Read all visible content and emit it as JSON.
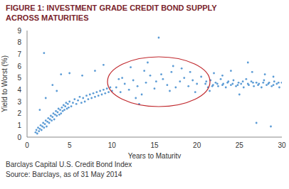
{
  "chart_data": {
    "type": "scatter",
    "title": "FIGURE 1: INVESTMENT GRADE CREDIT BOND SUPPLY ACROSS MATURITIES",
    "x_label": "Years to Maturity",
    "y_label": "Yield to Worst (%)",
    "footnotes": [
      "Barclays Capital U.S. Credit Bond Index",
      "Source: Barclays, as of 31 May 2014"
    ],
    "color": "#5b9bd5",
    "marker": "circle",
    "grid": false,
    "xlim": [
      0,
      30
    ],
    "xticks": [
      0,
      5,
      10,
      15,
      20,
      25,
      30
    ],
    "ylim": [
      0,
      9
    ],
    "yticks": [
      0,
      1,
      2,
      3,
      4,
      5,
      6,
      7,
      8,
      9
    ],
    "x": [
      1.0,
      1.1,
      1.2,
      1.3,
      1.4,
      1.5,
      1.6,
      1.7,
      1.8,
      1.9,
      2.0,
      2.1,
      2.2,
      2.3,
      2.4,
      2.5,
      2.6,
      2.7,
      2.8,
      2.9,
      3.0,
      3.1,
      3.2,
      3.3,
      3.4,
      3.5,
      3.6,
      3.7,
      3.8,
      3.9,
      4.0,
      4.1,
      4.2,
      4.3,
      4.4,
      4.5,
      4.6,
      4.7,
      4.8,
      4.9,
      5.0,
      5.2,
      5.4,
      5.6,
      5.8,
      6.0,
      6.2,
      6.4,
      6.6,
      6.8,
      7.0,
      7.2,
      7.4,
      7.6,
      7.8,
      8.0,
      8.2,
      8.4,
      8.6,
      8.8,
      9.0,
      9.2,
      9.4,
      9.6,
      9.8,
      10.0,
      1.5,
      2.0,
      2.2,
      3.0,
      4.0,
      5.0,
      6.5,
      8.0,
      9.0,
      3.5,
      10.5,
      11,
      11.5,
      12,
      12.5,
      13,
      13.5,
      14,
      14.5,
      15,
      15.5,
      16,
      16.5,
      17,
      17.5,
      18,
      18.5,
      19,
      19.5,
      20,
      20.5,
      11.2,
      12.8,
      13.8,
      15.2,
      16.8,
      18.2,
      19.8,
      14.2,
      17.2,
      12.2,
      10.8,
      15.8,
      13.2,
      19.2,
      21,
      21.3,
      21.6,
      21.9,
      22.2,
      22.5,
      22.8,
      23.1,
      23.4,
      23.7,
      24,
      24.3,
      24.6,
      24.9,
      25.2,
      25.5,
      25.8,
      26.1,
      26.4,
      26.7,
      27,
      27.3,
      27.6,
      27.9,
      28.2,
      28.5,
      28.8,
      29.1,
      29.4,
      29.7,
      30,
      21.1,
      21.8,
      22.4,
      23,
      23.6,
      24.2,
      24.8,
      25.4,
      26,
      26.6,
      27.2,
      27.8,
      28.4,
      29,
      29.6,
      22,
      24,
      26,
      28,
      25,
      27,
      23,
      29,
      21.5,
      26.5,
      28.7
    ],
    "values": [
      0.4,
      0.6,
      0.3,
      0.8,
      0.5,
      0.7,
      1.0,
      0.6,
      0.9,
      1.2,
      0.8,
      1.1,
      1.4,
      0.9,
      1.3,
      1.6,
      1.2,
      1.5,
      1.8,
      1.4,
      1.7,
      2.0,
      1.5,
      1.9,
      2.2,
      1.8,
      2.1,
      2.4,
      1.9,
      2.3,
      2.0,
      2.5,
      2.2,
      2.7,
      2.3,
      2.6,
      2.9,
      2.4,
      2.8,
      2.5,
      3.0,
      2.6,
      2.9,
      3.2,
      2.8,
      3.1,
      3.4,
      2.9,
      3.3,
      3.0,
      3.5,
      3.2,
      3.6,
      3.3,
      3.7,
      3.4,
      3.8,
      3.5,
      3.9,
      3.6,
      4.0,
      3.7,
      4.1,
      3.8,
      4.2,
      3.9,
      2.3,
      7.1,
      3.3,
      4.4,
      5.3,
      5.4,
      5.2,
      5.6,
      6.1,
      3.9,
      4.2,
      3.8,
      4.5,
      4.0,
      4.8,
      4.3,
      3.6,
      4.6,
      5.2,
      4.1,
      8.4,
      4.9,
      4.4,
      5.5,
      4.2,
      4.7,
      5.0,
      4.3,
      4.8,
      4.5,
      5.1,
      5.0,
      3.3,
      5.6,
      4.7,
      3.9,
      5.8,
      3.8,
      6.3,
      6.0,
      5.9,
      4.9,
      5.3,
      2.8,
      5.5,
      4.5,
      4.2,
      4.8,
      4.4,
      4.6,
      4.3,
      4.9,
      4.5,
      4.2,
      4.7,
      4.4,
      4.8,
      4.3,
      4.6,
      4.5,
      4.2,
      4.9,
      4.4,
      4.7,
      4.3,
      4.6,
      4.5,
      4.2,
      4.8,
      4.4,
      4.6,
      4.3,
      4.7,
      4.5,
      4.2,
      4.6,
      4.7,
      4.3,
      4.5,
      4.4,
      4.6,
      4.5,
      4.4,
      4.7,
      4.5,
      4.6,
      4.4,
      4.6,
      4.5,
      4.4,
      4.6,
      5.4,
      5.6,
      6.3,
      5.3,
      3.6,
      1.2,
      5.2,
      5.1,
      3.9,
      5.5,
      0.9
    ]
  }
}
